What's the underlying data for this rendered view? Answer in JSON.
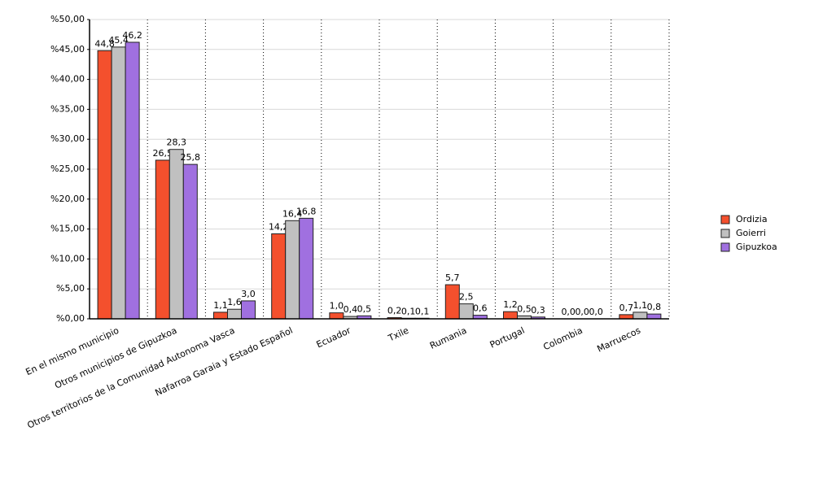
{
  "chart_data": {
    "type": "bar",
    "categories": [
      "En el mismo municipio",
      "Otros municipios de Gipuzkoa",
      "Otros territorios de la Comunidad Autonoma Vasca",
      "Nafarroa Garaia y Estado Español",
      "Ecuador",
      "Txile",
      "Rumania",
      "Portugal",
      "Colombia",
      "Marruecos"
    ],
    "series": [
      {
        "name": "Ordizia",
        "color": "#f4502d",
        "values": [
          44.8,
          26.5,
          1.1,
          14.2,
          1.0,
          0.2,
          5.7,
          1.2,
          0.0,
          0.7
        ],
        "value_labels": [
          "44,8",
          "26,5",
          "1,1",
          "14,2",
          "1,0",
          "0,2",
          "5,7",
          "1,2",
          "0,0",
          "0,7"
        ]
      },
      {
        "name": "Goierri",
        "color": "#c0c0c0",
        "values": [
          45.4,
          28.3,
          1.6,
          16.4,
          0.4,
          0.1,
          2.5,
          0.5,
          0.0,
          1.1
        ],
        "value_labels": [
          "45,4",
          "28,3",
          "1,6",
          "16,4",
          "0,4",
          "0,1",
          "2,5",
          "0,5",
          "0,0",
          "1,1"
        ]
      },
      {
        "name": "Gipuzkoa",
        "color": "#a070e0",
        "values": [
          46.2,
          25.8,
          3.0,
          16.8,
          0.5,
          0.1,
          0.6,
          0.3,
          0.0,
          0.8
        ],
        "value_labels": [
          "46,2",
          "25,8",
          "3,0",
          "16,8",
          "0,5",
          "0,1",
          "0,6",
          "0,3",
          "0,0",
          "0,8"
        ]
      }
    ],
    "ylim": [
      0,
      50
    ],
    "yticks": [
      {
        "value": 0,
        "label": "%0,00"
      },
      {
        "value": 5,
        "label": "%5,00"
      },
      {
        "value": 10,
        "label": "%10,00"
      },
      {
        "value": 15,
        "label": "%15,00"
      },
      {
        "value": 20,
        "label": "%20,00"
      },
      {
        "value": 25,
        "label": "%25,00"
      },
      {
        "value": 30,
        "label": "%30,00"
      },
      {
        "value": 35,
        "label": "%35,00"
      },
      {
        "value": 40,
        "label": "%40,00"
      },
      {
        "value": 45,
        "label": "%45,00"
      },
      {
        "value": 50,
        "label": "%50,00"
      }
    ],
    "grid": true,
    "legend": "right"
  }
}
